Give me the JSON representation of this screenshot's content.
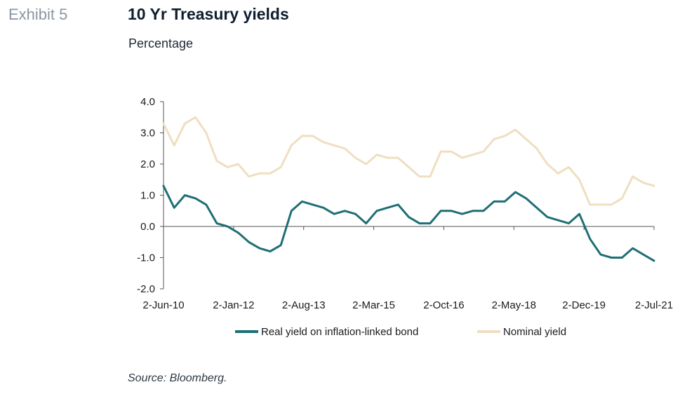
{
  "header": {
    "exhibit_label": "Exhibit 5",
    "title": "10 Yr Treasury yields",
    "subtitle": "Percentage"
  },
  "footer": {
    "source": "Source: Bloomberg."
  },
  "colors": {
    "real": "#1f6f75",
    "nominal": "#efdfc1",
    "axis": "#555555",
    "text": "#1a1a1a"
  },
  "chart_data": {
    "type": "line",
    "title": "10 Yr Treasury yields",
    "subtitle": "Percentage",
    "ylim": [
      -2.0,
      4.0
    ],
    "y_ticks": [
      "4.0",
      "3.0",
      "2.0",
      "1.0",
      "0.0",
      "-1.0",
      "-2.0"
    ],
    "x_tick_labels": [
      "2-Jun-10",
      "2-Jan-12",
      "2-Aug-13",
      "2-Mar-15",
      "2-Oct-16",
      "2-May-18",
      "2-Dec-19",
      "2-Jul-21"
    ],
    "legend_position": "bottom",
    "grid": false,
    "x": [
      "Jun-10",
      "Sep-10",
      "Dec-10",
      "Mar-11",
      "Jun-11",
      "Sep-11",
      "Dec-11",
      "Mar-12",
      "Jun-12",
      "Sep-12",
      "Dec-12",
      "Mar-13",
      "Jun-13",
      "Sep-13",
      "Dec-13",
      "Mar-14",
      "Jun-14",
      "Sep-14",
      "Dec-14",
      "Mar-15",
      "Jun-15",
      "Sep-15",
      "Dec-15",
      "Mar-16",
      "Jun-16",
      "Sep-16",
      "Dec-16",
      "Mar-17",
      "Jun-17",
      "Sep-17",
      "Dec-17",
      "Mar-18",
      "Jun-18",
      "Sep-18",
      "Dec-18",
      "Mar-19",
      "Jun-19",
      "Sep-19",
      "Dec-19",
      "Feb-20",
      "Mar-20",
      "Jun-20",
      "Sep-20",
      "Dec-20",
      "Mar-21",
      "Jun-21",
      "Jul-21"
    ],
    "series": [
      {
        "name": "Real yield on inflation-linked bond",
        "values": [
          1.3,
          0.6,
          1.0,
          0.9,
          0.7,
          0.1,
          0.0,
          -0.2,
          -0.5,
          -0.7,
          -0.8,
          -0.6,
          0.5,
          0.8,
          0.7,
          0.6,
          0.4,
          0.5,
          0.4,
          0.1,
          0.5,
          0.6,
          0.7,
          0.3,
          0.1,
          0.1,
          0.5,
          0.5,
          0.4,
          0.5,
          0.5,
          0.8,
          0.8,
          1.1,
          0.9,
          0.6,
          0.3,
          0.2,
          0.1,
          0.4,
          -0.4,
          -0.9,
          -1.0,
          -1.0,
          -0.7,
          -0.9,
          -1.1
        ]
      },
      {
        "name": "Nominal yield",
        "values": [
          3.3,
          2.6,
          3.3,
          3.5,
          3.0,
          2.1,
          1.9,
          2.0,
          1.6,
          1.7,
          1.7,
          1.9,
          2.6,
          2.9,
          2.9,
          2.7,
          2.6,
          2.5,
          2.2,
          2.0,
          2.3,
          2.2,
          2.2,
          1.9,
          1.6,
          1.6,
          2.4,
          2.4,
          2.2,
          2.3,
          2.4,
          2.8,
          2.9,
          3.1,
          2.8,
          2.5,
          2.0,
          1.7,
          1.9,
          1.5,
          0.7,
          0.7,
          0.7,
          0.9,
          1.6,
          1.4,
          1.3
        ]
      }
    ]
  }
}
